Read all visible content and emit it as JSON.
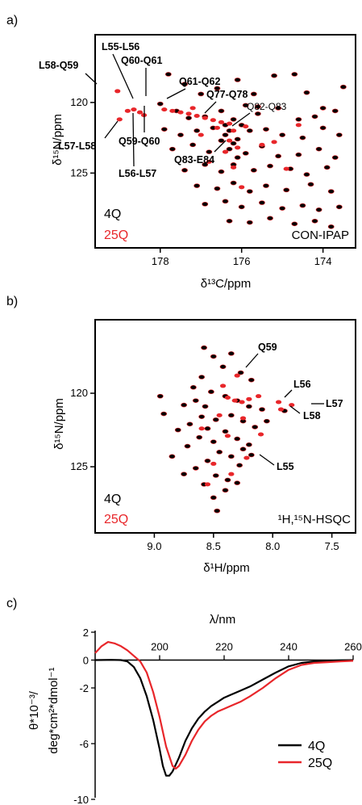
{
  "panels": {
    "a": {
      "label": "a)",
      "ylabel": "δ¹⁵N/ppm",
      "xlabel": "δ¹³C/ppm",
      "caption": "CON-IPAP"
    },
    "b": {
      "label": "b)",
      "ylabel": "δ¹⁵N/ppm",
      "xlabel": "δ¹H/ppm",
      "caption": "¹H,¹⁵N-HSQC"
    },
    "c": {
      "label": "c)",
      "xlabel": "λ/nm",
      "ylabel_1": "θ*10⁻³/",
      "ylabel_2": "deg*cm²*dmol⁻¹"
    }
  },
  "legend": {
    "q4": "4Q",
    "q25": "25Q",
    "black": "#000000",
    "red": "#e8262a"
  },
  "chart_data": [
    {
      "type": "scatter",
      "panel": "a",
      "caption": "CON-IPAP",
      "xlabel": "δ13C/ppm",
      "ylabel": "δ15N/ppm",
      "xlim": [
        179.6,
        173.2
      ],
      "ylim": [
        115.2,
        130.3
      ],
      "xticks": [
        178,
        176,
        174
      ],
      "yticks": [
        120,
        125
      ],
      "annotations": [
        {
          "text": "L58-Q59",
          "bold": true
        },
        {
          "text": "L55-L56",
          "bold": true
        },
        {
          "text": "Q60-Q61",
          "bold": true
        },
        {
          "text": "Q61-Q62",
          "bold": true
        },
        {
          "text": "Q77-Q78",
          "bold": true
        },
        {
          "text": "Q82-Q83",
          "bold": false
        },
        {
          "text": "L57-L58",
          "bold": true
        },
        {
          "text": "Q59-Q60",
          "bold": true
        },
        {
          "text": "L56-L57",
          "bold": true
        },
        {
          "text": "Q83-E84",
          "bold": true
        }
      ],
      "series": [
        {
          "name": "4Q",
          "color": "#000000",
          "points": [
            [
              177.8,
              118.0
            ],
            [
              177.4,
              118.7
            ],
            [
              177.0,
              119.4
            ],
            [
              176.6,
              119.0
            ],
            [
              176.1,
              118.4
            ],
            [
              175.7,
              119.4
            ],
            [
              175.2,
              118.1
            ],
            [
              174.7,
              118.0
            ],
            [
              174.4,
              119.3
            ],
            [
              174.0,
              120.4
            ],
            [
              173.5,
              118.9
            ],
            [
              178.0,
              120.1
            ],
            [
              177.6,
              120.6
            ],
            [
              177.3,
              121.1
            ],
            [
              176.9,
              121.0
            ],
            [
              176.5,
              120.6
            ],
            [
              176.2,
              121.2
            ],
            [
              175.9,
              120.2
            ],
            [
              175.6,
              120.8
            ],
            [
              175.1,
              120.4
            ],
            [
              174.6,
              121.2
            ],
            [
              174.2,
              121.0
            ],
            [
              173.7,
              120.6
            ],
            [
              177.9,
              121.9
            ],
            [
              177.5,
              122.3
            ],
            [
              177.1,
              122.0
            ],
            [
              176.7,
              121.8
            ],
            [
              176.4,
              122.3
            ],
            [
              176.1,
              122.6
            ],
            [
              175.8,
              122.0
            ],
            [
              175.4,
              121.9
            ],
            [
              175.0,
              122.3
            ],
            [
              174.5,
              122.5
            ],
            [
              174.0,
              121.8
            ],
            [
              173.6,
              122.3
            ],
            [
              177.7,
              123.3
            ],
            [
              177.2,
              123.0
            ],
            [
              176.8,
              123.5
            ],
            [
              176.3,
              123.3
            ],
            [
              175.9,
              123.6
            ],
            [
              175.5,
              123.1
            ],
            [
              175.1,
              123.8
            ],
            [
              174.6,
              123.7
            ],
            [
              174.1,
              123.3
            ],
            [
              173.7,
              123.9
            ],
            [
              177.4,
              124.8
            ],
            [
              176.9,
              124.4
            ],
            [
              176.5,
              124.9
            ],
            [
              176.2,
              124.4
            ],
            [
              175.7,
              124.8
            ],
            [
              175.3,
              124.5
            ],
            [
              174.8,
              124.7
            ],
            [
              174.4,
              125.1
            ],
            [
              173.9,
              124.6
            ],
            [
              177.1,
              125.9
            ],
            [
              176.6,
              126.1
            ],
            [
              176.2,
              125.7
            ],
            [
              175.8,
              126.3
            ],
            [
              175.4,
              125.9
            ],
            [
              174.9,
              126.2
            ],
            [
              174.3,
              125.8
            ],
            [
              173.8,
              126.3
            ],
            [
              176.9,
              127.2
            ],
            [
              176.4,
              127.0
            ],
            [
              176.0,
              127.4
            ],
            [
              175.5,
              127.1
            ],
            [
              175.0,
              127.5
            ],
            [
              174.5,
              127.3
            ],
            [
              174.1,
              127.6
            ],
            [
              173.6,
              127.4
            ],
            [
              176.3,
              128.4
            ],
            [
              175.8,
              128.5
            ],
            [
              175.3,
              128.2
            ],
            [
              174.7,
              128.6
            ],
            [
              174.2,
              128.4
            ],
            [
              173.8,
              128.8
            ],
            [
              176.4,
              121.6
            ],
            [
              176.3,
              122.0
            ],
            [
              176.2,
              122.9
            ],
            [
              176.0,
              121.6
            ],
            [
              176.5,
              122.7
            ],
            [
              176.1,
              123.9
            ],
            [
              175.6,
              120.3
            ]
          ]
        },
        {
          "name": "25Q",
          "color": "#e8262a",
          "points": [
            [
              179.05,
              119.2
            ],
            [
              178.65,
              120.5
            ],
            [
              178.5,
              120.7
            ],
            [
              178.4,
              120.9
            ],
            [
              179.0,
              121.2
            ],
            [
              178.8,
              120.6
            ],
            [
              177.9,
              120.5
            ],
            [
              177.7,
              120.6
            ],
            [
              177.5,
              120.7
            ],
            [
              177.3,
              120.8
            ],
            [
              177.1,
              120.95
            ],
            [
              176.9,
              121.1
            ],
            [
              176.7,
              121.25
            ],
            [
              176.5,
              121.4
            ],
            [
              176.3,
              121.5
            ],
            [
              176.2,
              122.0
            ],
            [
              176.3,
              122.7
            ],
            [
              176.1,
              123.2
            ],
            [
              175.9,
              121.7
            ],
            [
              176.4,
              123.5
            ],
            [
              176.6,
              121.8
            ],
            [
              176.2,
              124.6
            ],
            [
              177.0,
              122.3
            ],
            [
              176.8,
              124.2
            ],
            [
              175.5,
              123.0
            ],
            [
              174.9,
              124.7
            ],
            [
              174.6,
              121.6
            ],
            [
              177.2,
              120.4
            ],
            [
              176.0,
              126.0
            ],
            [
              175.2,
              122.8
            ]
          ]
        }
      ]
    },
    {
      "type": "scatter",
      "panel": "b",
      "caption": "1H,15N-HSQC",
      "xlabel": "δ1H/ppm",
      "ylabel": "δ15N/ppm",
      "xlim": [
        9.5,
        7.3
      ],
      "ylim": [
        115.0,
        129.5
      ],
      "xticks": [
        9.0,
        8.5,
        8.0,
        7.5
      ],
      "yticks": [
        120,
        125
      ],
      "annotations": [
        {
          "text": "Q59",
          "bold": true
        },
        {
          "text": "L56",
          "bold": true
        },
        {
          "text": "L57",
          "bold": true
        },
        {
          "text": "L58",
          "bold": true
        },
        {
          "text": "L55",
          "bold": true
        }
      ],
      "series": [
        {
          "name": "4Q",
          "color": "#000000",
          "points": [
            [
              8.58,
              116.9
            ],
            [
              8.5,
              117.5
            ],
            [
              8.35,
              117.3
            ],
            [
              8.42,
              118.2
            ],
            [
              8.27,
              118.6
            ],
            [
              8.6,
              118.9
            ],
            [
              8.18,
              119.1
            ],
            [
              8.52,
              119.9
            ],
            [
              8.4,
              120.2
            ],
            [
              8.3,
              120.5
            ],
            [
              8.65,
              120.5
            ],
            [
              8.75,
              120.8
            ],
            [
              8.2,
              120.9
            ],
            [
              8.09,
              121.1
            ],
            [
              8.92,
              121.4
            ],
            [
              8.6,
              121.6
            ],
            [
              8.48,
              121.8
            ],
            [
              8.35,
              121.5
            ],
            [
              8.25,
              121.9
            ],
            [
              8.7,
              122.1
            ],
            [
              8.8,
              122.5
            ],
            [
              8.55,
              122.4
            ],
            [
              8.4,
              122.6
            ],
            [
              8.15,
              122.3
            ],
            [
              8.05,
              121.9
            ],
            [
              8.62,
              123.0
            ],
            [
              8.5,
              123.3
            ],
            [
              8.3,
              123.1
            ],
            [
              8.2,
              123.5
            ],
            [
              8.72,
              123.6
            ],
            [
              8.45,
              124.0
            ],
            [
              8.35,
              124.3
            ],
            [
              8.55,
              124.6
            ],
            [
              8.28,
              124.9
            ],
            [
              8.18,
              124.2
            ],
            [
              8.65,
              125.1
            ],
            [
              8.48,
              125.6
            ],
            [
              8.38,
              125.9
            ],
            [
              8.58,
              126.2
            ],
            [
              8.4,
              126.6
            ],
            [
              8.75,
              125.5
            ],
            [
              8.3,
              126.1
            ],
            [
              8.5,
              127.1
            ],
            [
              8.47,
              128.0
            ],
            [
              8.25,
              123.8
            ],
            [
              7.9,
              121.2
            ],
            [
              8.85,
              124.3
            ],
            [
              8.95,
              120.2
            ],
            [
              8.67,
              119.6
            ],
            [
              8.57,
              120.9
            ]
          ]
        },
        {
          "name": "25Q",
          "color": "#e8262a",
          "points": [
            [
              8.3,
              118.8
            ],
            [
              8.38,
              120.3
            ],
            [
              8.32,
              120.5
            ],
            [
              8.26,
              120.6
            ],
            [
              8.2,
              120.4
            ],
            [
              8.12,
              120.2
            ],
            [
              7.95,
              120.6
            ],
            [
              7.84,
              120.8
            ],
            [
              7.93,
              121.1
            ],
            [
              8.22,
              124.4
            ],
            [
              8.45,
              121.5
            ],
            [
              8.38,
              122.9
            ],
            [
              8.6,
              122.4
            ],
            [
              8.5,
              124.8
            ],
            [
              8.1,
              122.8
            ],
            [
              8.35,
              125.5
            ],
            [
              8.55,
              126.2
            ],
            [
              8.25,
              121.7
            ],
            [
              8.42,
              119.5
            ]
          ]
        }
      ]
    },
    {
      "type": "line",
      "panel": "c",
      "xlabel": "λ/nm",
      "ylabel": "θ*10-3/ deg*cm2*dmol-1",
      "xlim": [
        180,
        260
      ],
      "ylim": [
        -10,
        2
      ],
      "xticks": [
        200,
        220,
        240,
        260
      ],
      "yticks": [
        2,
        0,
        -2,
        -6,
        -10
      ],
      "legend_position": "lower-right",
      "series": [
        {
          "name": "4Q",
          "color": "#000000",
          "x": [
            180,
            185,
            188,
            190,
            192,
            194,
            196,
            198,
            200,
            201,
            202,
            203,
            204,
            206,
            208,
            210,
            212,
            214,
            216,
            218,
            220,
            222,
            225,
            228,
            232,
            236,
            240,
            244,
            248,
            252,
            256,
            260
          ],
          "y": [
            0.0,
            0.02,
            0.0,
            -0.1,
            -0.5,
            -1.3,
            -2.6,
            -4.3,
            -6.4,
            -7.6,
            -8.3,
            -8.3,
            -8.0,
            -7.0,
            -5.8,
            -4.9,
            -4.2,
            -3.7,
            -3.3,
            -3.0,
            -2.7,
            -2.5,
            -2.2,
            -1.9,
            -1.4,
            -0.9,
            -0.45,
            -0.2,
            -0.1,
            -0.05,
            -0.02,
            0.0
          ]
        },
        {
          "name": "25Q",
          "color": "#e8262a",
          "x": [
            180,
            182,
            184,
            186,
            188,
            190,
            192,
            194,
            196,
            198,
            200,
            202,
            204,
            205,
            206,
            208,
            210,
            212,
            214,
            216,
            218,
            220,
            222,
            225,
            228,
            232,
            236,
            240,
            244,
            248,
            252,
            256,
            260
          ],
          "y": [
            0.5,
            1.0,
            1.3,
            1.2,
            1.0,
            0.7,
            0.3,
            -0.1,
            -0.9,
            -2.3,
            -4.1,
            -6.2,
            -7.6,
            -7.8,
            -7.6,
            -6.8,
            -5.8,
            -5.0,
            -4.4,
            -4.0,
            -3.7,
            -3.5,
            -3.3,
            -3.0,
            -2.6,
            -2.0,
            -1.3,
            -0.7,
            -0.35,
            -0.2,
            -0.15,
            -0.1,
            -0.05
          ]
        }
      ]
    }
  ]
}
